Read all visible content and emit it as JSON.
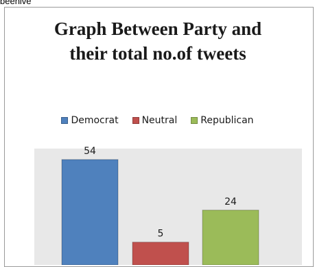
{
  "top_text": "beehive",
  "chart_data": {
    "type": "bar",
    "title": "Graph Between Party and their total no.of tweets",
    "categories": [
      "Democrat",
      "Neutral",
      "Republican"
    ],
    "values": [
      54,
      5,
      24
    ],
    "colors": [
      "#4f81bd",
      "#c0504d",
      "#9bbb59"
    ],
    "legend": [
      "Democrat",
      "Neutral",
      "Republican"
    ],
    "legend_position": "top",
    "plot_background": "#e8e8e8",
    "ylim": [
      0,
      60
    ],
    "grid": false,
    "data_labels": true
  }
}
